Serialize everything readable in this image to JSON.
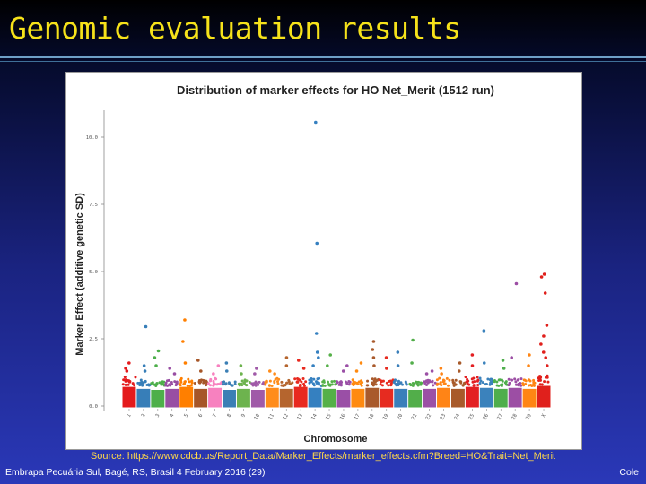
{
  "slide": {
    "title": "Genomic evaluation results",
    "source": "Source: https://www.cdcb.us/Report_Data/Marker_Effects/marker_effects.cfm?Breed=HO&Trait=Net_Merit",
    "footer_left": "Embrapa Pecuária Sul, Bagé, RS, Brasil 4 February 2016 (29)",
    "footer_right": "Cole"
  },
  "chart_data": {
    "type": "scatter",
    "title": "Distribution of marker effects for HO Net_Merit (1512 run)",
    "xlabel": "Chromosome",
    "ylabel": "Marker Effect (additive genetic SD)",
    "ylim": [
      0,
      11
    ],
    "yticks": [
      0.0,
      2.5,
      5.0,
      7.5,
      10.0
    ],
    "ytick_labels": [
      "0.0",
      "2.5",
      "5.0",
      "7.5",
      "10.0"
    ],
    "categories": [
      "1",
      "2",
      "3",
      "4",
      "5",
      "6",
      "7",
      "8",
      "9",
      "10",
      "11",
      "12",
      "13",
      "14",
      "15",
      "16",
      "17",
      "18",
      "19",
      "20",
      "21",
      "22",
      "23",
      "24",
      "25",
      "26",
      "27",
      "28",
      "29",
      "X"
    ],
    "chromosome_colors": [
      "#e41a1c",
      "#377eb8",
      "#4daf4a",
      "#984ea3",
      "#ff7f00",
      "#a65628",
      "#f781bf",
      "#3b7fb5",
      "#6db34e",
      "#a05aa8",
      "#ff8c1a",
      "#b5652e",
      "#e8291f",
      "#3580c0",
      "#55b048",
      "#9a4fa6",
      "#ff8a10",
      "#a95a2c",
      "#e62b20",
      "#3a7fba",
      "#52ae4a",
      "#9b50a5",
      "#ff8416",
      "#a85a2a",
      "#e31f22",
      "#3b82bc",
      "#4fae4c",
      "#9c4ea4",
      "#ff8513",
      "#e0201c"
    ],
    "baseline_max": [
      0.95,
      0.85,
      0.8,
      0.85,
      0.95,
      0.85,
      0.9,
      0.8,
      0.85,
      0.8,
      0.9,
      0.85,
      0.95,
      0.9,
      0.85,
      0.8,
      0.85,
      0.9,
      0.85,
      0.85,
      0.8,
      0.85,
      0.9,
      0.85,
      0.95,
      0.9,
      0.85,
      0.9,
      0.85,
      1.0
    ],
    "notable_effects": [
      [
        1,
        1.6
      ],
      [
        1,
        1.4
      ],
      [
        1,
        1.3
      ],
      [
        2,
        2.95
      ],
      [
        2,
        1.5
      ],
      [
        2,
        1.3
      ],
      [
        3,
        2.05
      ],
      [
        3,
        1.8
      ],
      [
        3,
        1.5
      ],
      [
        4,
        1.4
      ],
      [
        4,
        1.2
      ],
      [
        5,
        3.2
      ],
      [
        5,
        2.4
      ],
      [
        5,
        1.6
      ],
      [
        6,
        1.7
      ],
      [
        6,
        1.3
      ],
      [
        7,
        1.5
      ],
      [
        7,
        1.2
      ],
      [
        8,
        1.6
      ],
      [
        8,
        1.3
      ],
      [
        9,
        1.5
      ],
      [
        9,
        1.2
      ],
      [
        10,
        1.4
      ],
      [
        10,
        1.2
      ],
      [
        11,
        1.3
      ],
      [
        11,
        1.2
      ],
      [
        12,
        1.8
      ],
      [
        12,
        1.5
      ],
      [
        13,
        1.7
      ],
      [
        13,
        1.4
      ],
      [
        14,
        10.55
      ],
      [
        14,
        6.05
      ],
      [
        14,
        2.7
      ],
      [
        14,
        2.0
      ],
      [
        14,
        1.8
      ],
      [
        14,
        1.5
      ],
      [
        15,
        1.9
      ],
      [
        15,
        1.5
      ],
      [
        16,
        1.5
      ],
      [
        16,
        1.3
      ],
      [
        17,
        1.6
      ],
      [
        17,
        1.3
      ],
      [
        18,
        2.4
      ],
      [
        18,
        2.1
      ],
      [
        18,
        1.8
      ],
      [
        18,
        1.5
      ],
      [
        19,
        1.8
      ],
      [
        19,
        1.4
      ],
      [
        20,
        2.0
      ],
      [
        20,
        1.5
      ],
      [
        21,
        2.45
      ],
      [
        21,
        1.6
      ],
      [
        22,
        1.3
      ],
      [
        22,
        1.2
      ],
      [
        23,
        1.4
      ],
      [
        23,
        1.2
      ],
      [
        24,
        1.6
      ],
      [
        24,
        1.3
      ],
      [
        25,
        1.9
      ],
      [
        25,
        1.5
      ],
      [
        26,
        2.8
      ],
      [
        26,
        1.6
      ],
      [
        27,
        1.7
      ],
      [
        27,
        1.4
      ],
      [
        28,
        4.55
      ],
      [
        28,
        1.8
      ],
      [
        29,
        1.9
      ],
      [
        29,
        1.5
      ],
      [
        30,
        4.9
      ],
      [
        30,
        4.8
      ],
      [
        30,
        4.2
      ],
      [
        30,
        3.0
      ],
      [
        30,
        2.6
      ],
      [
        30,
        2.3
      ],
      [
        30,
        2.0
      ],
      [
        30,
        1.8
      ],
      [
        30,
        1.5
      ]
    ],
    "grid": false,
    "legend": "none"
  }
}
